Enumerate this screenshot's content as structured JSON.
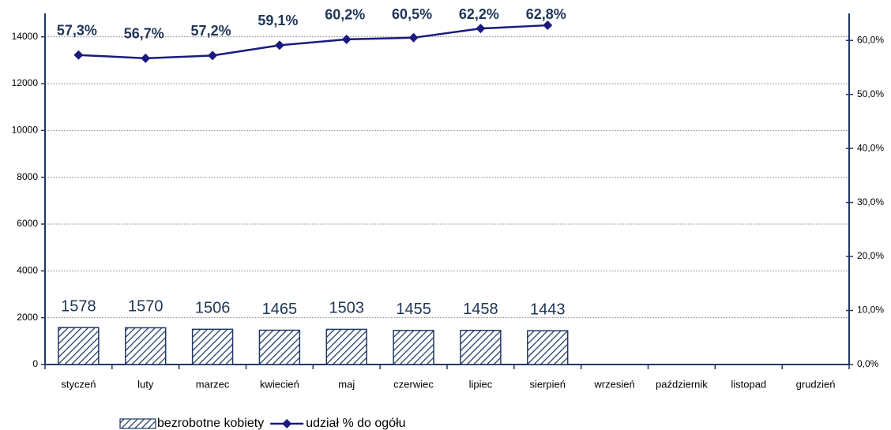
{
  "chart_data": {
    "type": "combo",
    "categories": [
      "styczeń",
      "luty",
      "marzec",
      "kwiecień",
      "maj",
      "czerwiec",
      "lipiec",
      "sierpień",
      "wrzesień",
      "październik",
      "listopad",
      "grudzień"
    ],
    "series": [
      {
        "name": "bezrobotne kobiety",
        "type": "bar",
        "color": "#1f3864",
        "values": [
          1578,
          1570,
          1506,
          1465,
          1503,
          1455,
          1458,
          1443,
          null,
          null,
          null,
          null
        ]
      },
      {
        "name": "udział % do ogółu",
        "type": "line",
        "axis": "y2",
        "color": "#1a1a80",
        "values": [
          57.3,
          56.7,
          57.2,
          59.1,
          60.2,
          60.5,
          62.2,
          62.8,
          null,
          null,
          null,
          null
        ],
        "value_labels": [
          "57,3%",
          "56,7%",
          "57,2%",
          "59,1%",
          "60,2%",
          "60,5%",
          "62,2%",
          "62,8%",
          null,
          null,
          null,
          null
        ]
      }
    ],
    "ylim": [
      0,
      15000
    ],
    "yticks": [
      0,
      2000,
      4000,
      6000,
      8000,
      10000,
      12000,
      14000
    ],
    "y2lim": [
      0,
      65
    ],
    "y2ticks": [
      {
        "value": 0,
        "label": "0,0%"
      },
      {
        "value": 10,
        "label": "10,0%"
      },
      {
        "value": 20,
        "label": "20,0%"
      },
      {
        "value": 30,
        "label": "30,0%"
      },
      {
        "value": 40,
        "label": "40,0%"
      },
      {
        "value": 50,
        "label": "50,0%"
      },
      {
        "value": 60,
        "label": "60,0%"
      }
    ],
    "grid": true,
    "legend": "bottom"
  }
}
